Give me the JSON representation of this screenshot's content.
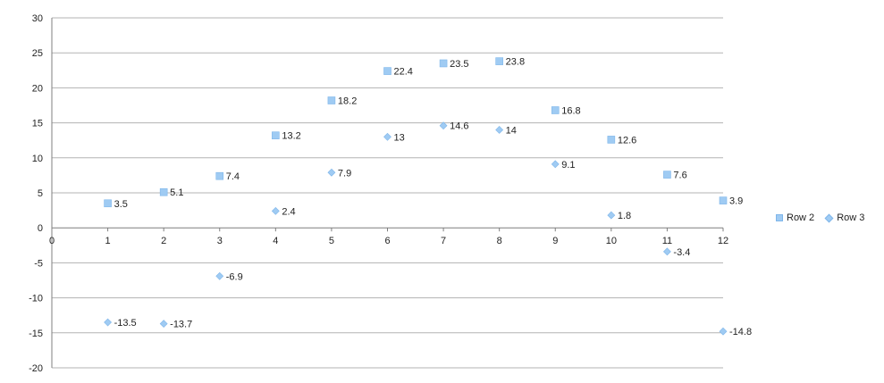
{
  "chart_data": {
    "type": "scatter",
    "title": "",
    "xlabel": "",
    "ylabel": "",
    "xlim": [
      0,
      12
    ],
    "ylim": [
      -20,
      30
    ],
    "x_ticks": [
      0,
      1,
      2,
      3,
      4,
      5,
      6,
      7,
      8,
      9,
      10,
      11,
      12
    ],
    "y_ticks": [
      30,
      25,
      20,
      15,
      10,
      5,
      0,
      -5,
      -10,
      -15,
      -20
    ],
    "grid": "horizontal",
    "legend_position": "right",
    "series": [
      {
        "name": "Row 2",
        "marker": "square",
        "color": "#9fcbf3",
        "x": [
          1,
          2,
          3,
          4,
          5,
          6,
          7,
          8,
          9,
          10,
          11,
          12
        ],
        "values": [
          3.5,
          5.1,
          7.4,
          13.2,
          18.2,
          22.4,
          23.5,
          23.8,
          16.8,
          12.6,
          7.6,
          3.9
        ]
      },
      {
        "name": "Row 3",
        "marker": "diamond",
        "color": "#9fcbf3",
        "x": [
          1,
          2,
          3,
          4,
          5,
          6,
          7,
          8,
          9,
          10,
          11,
          12
        ],
        "values": [
          -13.5,
          -13.7,
          -6.9,
          2.4,
          7.9,
          13,
          14.6,
          14,
          9.1,
          1.8,
          -3.4,
          -14.8
        ]
      }
    ]
  }
}
